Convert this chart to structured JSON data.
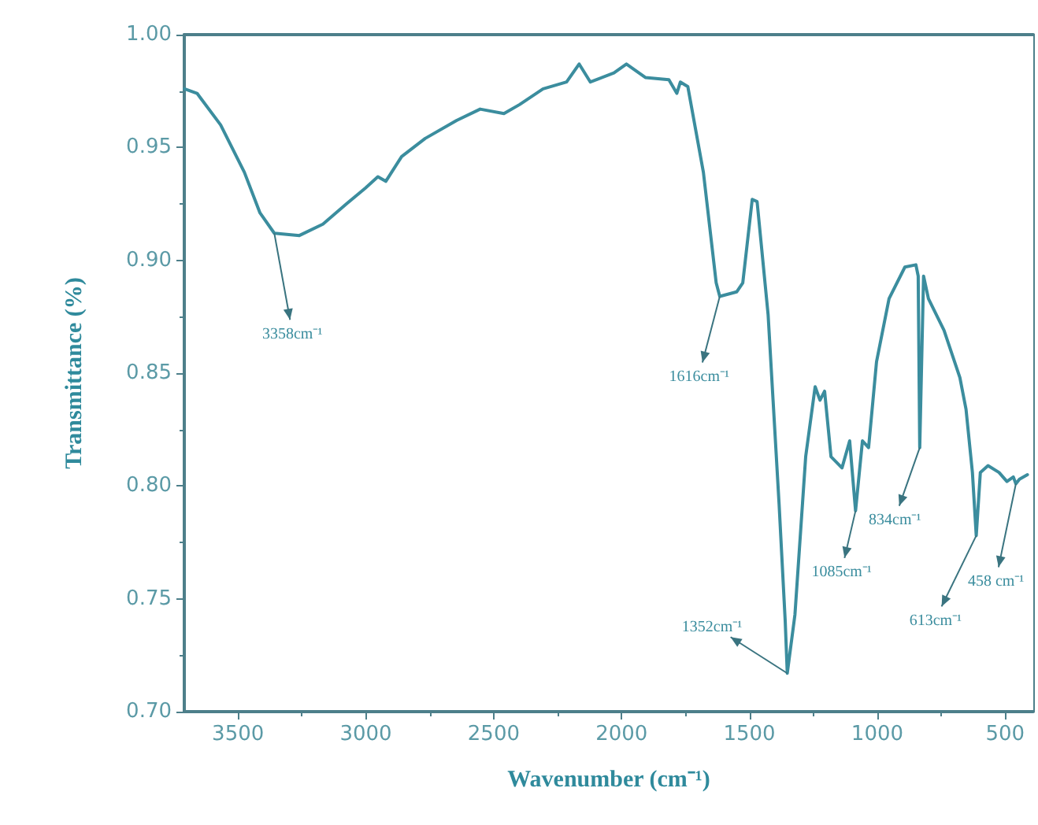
{
  "chart_data": {
    "type": "line",
    "xlabel": "Wavenumber (cm⁻¹)",
    "ylabel": "Transmittance (%)",
    "xlim": [
      3710,
      390
    ],
    "xticks": [
      3500,
      3000,
      2500,
      2000,
      1500,
      1000,
      500
    ],
    "ylim": [
      0.7,
      1.0
    ],
    "yticks": [
      {
        "value": 0.7,
        "label": "0.70"
      },
      {
        "value": 0.75,
        "label": "0.75"
      },
      {
        "value": 0.8,
        "label": "0.80"
      },
      {
        "value": 0.85,
        "label": "0.85"
      },
      {
        "value": 0.9,
        "label": "0.90"
      },
      {
        "value": 0.95,
        "label": "0.95"
      },
      {
        "value": 1.0,
        "label": "1.00"
      }
    ],
    "grid": false,
    "marker": "none",
    "line_style": "solid",
    "series": [
      {
        "color": "#3b8d9e",
        "x": [
          3709,
          3660,
          3568,
          3475,
          3414,
          3358,
          3260,
          3168,
          3076,
          3002,
          2953,
          2922,
          2860,
          2768,
          2645,
          2553,
          2460,
          2399,
          2307,
          2215,
          2166,
          2122,
          2030,
          1981,
          1907,
          1815,
          1784,
          1770,
          1741,
          1680,
          1630,
          1616,
          1550,
          1526,
          1489,
          1470,
          1427,
          1384,
          1360,
          1352,
          1322,
          1280,
          1243,
          1224,
          1206,
          1181,
          1138,
          1108,
          1085,
          1058,
          1034,
          1003,
          954,
          892,
          849,
          840,
          834,
          819,
          800,
          739,
          677,
          653,
          628,
          613,
          597,
          567,
          524,
          493,
          468,
          458,
          444,
          413
        ],
        "values": [
          0.976,
          0.974,
          0.96,
          0.939,
          0.921,
          0.912,
          0.911,
          0.916,
          0.925,
          0.932,
          0.937,
          0.935,
          0.946,
          0.954,
          0.962,
          0.967,
          0.965,
          0.969,
          0.976,
          0.979,
          0.987,
          0.979,
          0.983,
          0.987,
          0.981,
          0.98,
          0.974,
          0.979,
          0.977,
          0.939,
          0.89,
          0.884,
          0.886,
          0.89,
          0.927,
          0.926,
          0.876,
          0.792,
          0.74,
          0.717,
          0.743,
          0.813,
          0.844,
          0.838,
          0.842,
          0.813,
          0.808,
          0.82,
          0.789,
          0.82,
          0.817,
          0.855,
          0.883,
          0.897,
          0.898,
          0.893,
          0.817,
          0.893,
          0.883,
          0.869,
          0.848,
          0.834,
          0.806,
          0.778,
          0.806,
          0.809,
          0.806,
          0.802,
          0.804,
          0.801,
          0.803,
          0.805
        ]
      }
    ],
    "annotations": [
      {
        "text": "3358cm⁻¹",
        "x": 3358,
        "y": 0.912
      },
      {
        "text": "1616cm⁻¹",
        "x": 1616,
        "y": 0.884
      },
      {
        "text": "1352cm⁻¹",
        "x": 1352,
        "y": 0.717
      },
      {
        "text": "1085cm⁻¹",
        "x": 1085,
        "y": 0.789
      },
      {
        "text": "834cm⁻¹",
        "x": 834,
        "y": 0.817
      },
      {
        "text": "613cm⁻¹",
        "x": 613,
        "y": 0.778
      },
      {
        "text": "458 cm⁻¹",
        "x": 458,
        "y": 0.801
      }
    ]
  }
}
